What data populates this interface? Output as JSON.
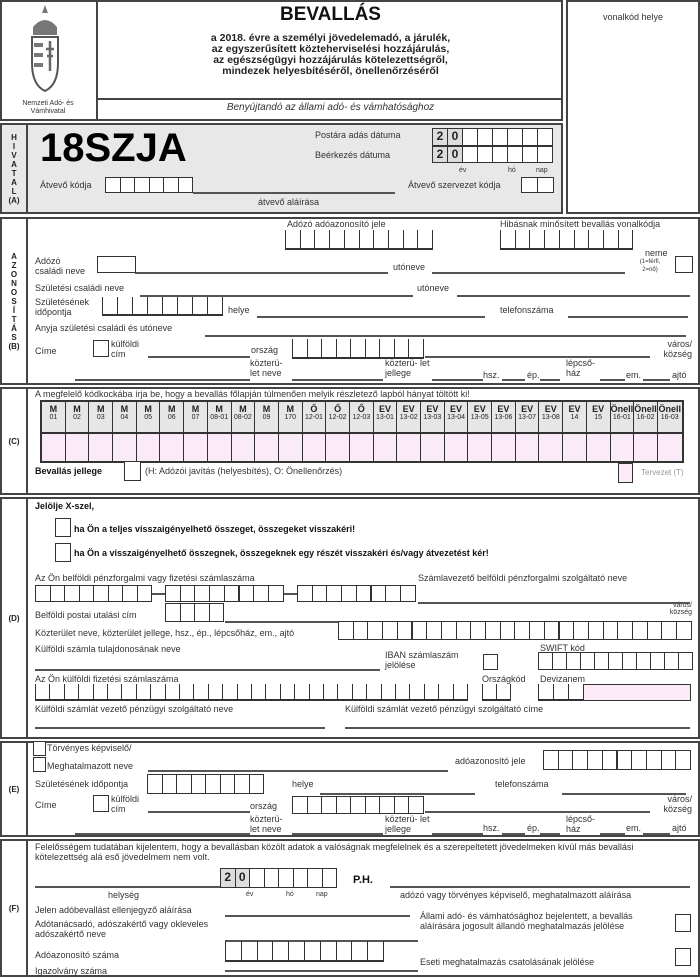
{
  "header": {
    "title": "BEVALLÁS",
    "subtitle_lines": [
      "a 2018. évre a személyi jövedelemadó, a járulék,",
      "az egyszerűsített közteherviselési hozzájárulás,",
      "az egészségügyi hozzájárulás kötelezettségről,",
      "mindezek helyesbítéséről, önellenőrzéséről"
    ],
    "submit_to": "Benyújtandó az állami adó- és vámhatósághoz",
    "logo_text": "Nemzeti Adó- és Vámhivatal",
    "barcode_label": "vonalkód helye"
  },
  "section_a": {
    "strip": "H I V A T A L (A)",
    "form_code": "18SZJA",
    "postal_date": "Postára adás dátuma",
    "arrival_date": "Beérkezés dátuma",
    "year_prefix": [
      "2",
      "0"
    ],
    "ev": "év",
    "ho": "hó",
    "nap": "nap",
    "receiver_code": "Átvevő kódja",
    "receiver_signature": "átvevő aláírása",
    "receiver_org_code": "Átvevő szervezet kódja"
  },
  "section_b": {
    "strip": "A Z O N O S Í T Á S (B)",
    "tax_id": "Adózó adóazonosító jele",
    "faulty_barcode": "Hibásnak minősített bevallás vonalkódja",
    "family_name": "Adózó családi neve",
    "first_name": "utóneve",
    "sex": "neme",
    "sex_hint": "(1=férfi, 2=nő)",
    "birth_family_name": "Születési családi neve",
    "birth_first_name": "utóneve",
    "birth_date": "Születésének időpontja",
    "birth_place": "helye",
    "phone": "telefonszáma",
    "mother_name": "Anyja születési családi és utóneve",
    "address": "Címe",
    "foreign_address": "külföldi cím",
    "country": "ország",
    "city": "város/ község",
    "street_name": "közterü- let neve",
    "street_type": "közterü- let jellege",
    "house_no": "hsz.",
    "building": "ép.",
    "staircase": "lépcső- ház",
    "floor": "em.",
    "door": "ajtó"
  },
  "section_c": {
    "strip": "(C)",
    "instruction": "A megfelelő kódkockába írja be, hogy a bevallás főlapján túlmenően melyik részletező lapból hányat töltött ki!",
    "codes": [
      [
        "M",
        "01"
      ],
      [
        "M",
        "02"
      ],
      [
        "M",
        "03"
      ],
      [
        "M",
        "04"
      ],
      [
        "M",
        "05"
      ],
      [
        "M",
        "06"
      ],
      [
        "M",
        "07"
      ],
      [
        "M",
        "08-01"
      ],
      [
        "M",
        "08-02"
      ],
      [
        "M",
        "09"
      ],
      [
        "M",
        "170"
      ],
      [
        "Ő",
        "12-01"
      ],
      [
        "Ő",
        "12-02"
      ],
      [
        "Ő",
        "12-03"
      ],
      [
        "EV",
        "13-01"
      ],
      [
        "EV",
        "13-02"
      ],
      [
        "EV",
        "13-03"
      ],
      [
        "EV",
        "13-04"
      ],
      [
        "EV",
        "13-05"
      ],
      [
        "EV",
        "13-06"
      ],
      [
        "EV",
        "13-07"
      ],
      [
        "EV",
        "13-08"
      ],
      [
        "EV",
        "14"
      ],
      [
        "EV",
        "15"
      ],
      [
        "Önell",
        "16-01"
      ],
      [
        "Önell",
        "16-02"
      ],
      [
        "Önell",
        "16-03"
      ]
    ],
    "nature": "Bevallás jellege",
    "nature_hint": "(H: Adózói javítás (helyesbítés), O: Önellenőrzés)",
    "draft": "Tervezet (T)"
  },
  "section_d": {
    "strip": "(D)",
    "mark_x": "Jelölje X-szel,",
    "option_full": "ha Ön a teljes visszaigényelhető összeget, összegeket visszakéri!",
    "option_partial": "ha Ön a visszaigényelhető összegnek, összegeknek egy részét visszakéri és/vagy átvezetést kér!",
    "domestic_account": "Az Ön belföldi pénzforgalmi vagy fizetési számlaszáma",
    "domestic_provider": "Számlavezető belföldi pénzforgalmi szolgáltató neve",
    "postal_address": "Belföldi postai utalási cím",
    "city": "város/ község",
    "street_line": "Közterület neve, közterület jellege, hsz., ép., lépcsőház, em., ajtó",
    "foreign_owner": "Külföldi számla tulajdonosának neve",
    "iban": "IBAN számlaszám jelölése",
    "swift": "SWIFT kód",
    "foreign_account": "Az Ön külföldi fizetési számlaszáma",
    "country_code": "Országkód",
    "currency": "Devizanem",
    "foreign_provider_name": "Külföldi számlát vezető pénzügyi szolgáltató neve",
    "foreign_provider_address": "Külföldi számlát vezető pénzügyi szolgáltató címe"
  },
  "section_e": {
    "strip": "(E)",
    "legal_rep": "Törvényes képviselő/",
    "proxy_name": "Meghatalmazott neve",
    "tax_id": "adóazonosító jele",
    "birth_date": "Születésének időpontja",
    "birth_place": "helye",
    "phone": "telefonszáma",
    "address": "Címe",
    "foreign_address": "külföldi cím",
    "country": "ország",
    "city": "város/ község",
    "street_name": "közterü- let neve",
    "street_type": "közterü- let jellege",
    "house_no": "hsz.",
    "building": "ép.",
    "staircase": "lépcső- ház",
    "floor": "em.",
    "door": "ajtó"
  },
  "section_f": {
    "strip": "(F)",
    "declaration": "Felelősségem tudatában kijelentem, hogy a bevallásban közölt adatok a valóságnak megfelelnek és a szerepeltetett jövedelmeken kívül más bevallási kötelezettség alá eső jövedelmem nem volt.",
    "year_prefix": [
      "2",
      "0"
    ],
    "ph": "P.H.",
    "place": "helység",
    "ev": "év",
    "ho": "hó",
    "nap": "nap",
    "signature": "adózó vagy törvényes képviselő, meghatalmazott aláírása",
    "countersign": "Jelen adóbevallást ellenjegyző aláírása",
    "advisor": "Adótanácsadó, adószakértő vagy okleveles adószakértő neve",
    "advisor_tax_id": "Adóazonosító száma",
    "id_card": "Igazolvány száma",
    "permanent_proxy": "Állami adó- és vámhatósághoz bejelentett, a bevallás aláírására jogosult állandó meghatalmazás jelölése",
    "occasional_proxy": "Eseti meghatalmazás csatolásának jelölése"
  },
  "colors": {
    "section_a_bg": "#e8e8e8",
    "entry_pink": "#fbeaf7",
    "border": "#444444"
  },
  "icons": {
    "logo": "hungarian-coat-of-arms-icon"
  }
}
